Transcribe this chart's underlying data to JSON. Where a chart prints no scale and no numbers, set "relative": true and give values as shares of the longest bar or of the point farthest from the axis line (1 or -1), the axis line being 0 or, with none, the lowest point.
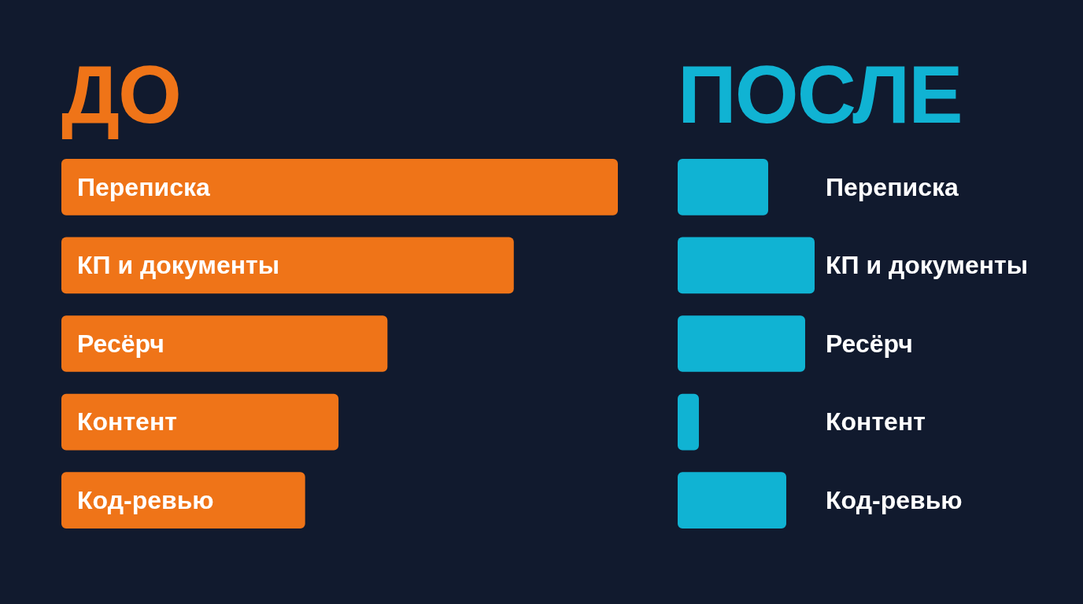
{
  "chart_data": [
    {
      "type": "bar",
      "orientation": "horizontal",
      "relative": true,
      "title": "ДО",
      "categories": [
        "Переписка",
        "КП и документы",
        "Ресёрч",
        "Контент",
        "Код-ревью"
      ],
      "color": "#ef7418",
      "values": [
        1,
        0.813,
        0.586,
        0.498,
        0.438
      ]
    },
    {
      "type": "bar",
      "orientation": "horizontal",
      "relative": true,
      "title": "ПОСЛЕ",
      "categories": [
        "Переписка",
        "КП и документы",
        "Ресёрч",
        "Контент",
        "Код-ревью"
      ],
      "color": "#10b3d3",
      "values": [
        0.661,
        1,
        0.931,
        0.155,
        0.793
      ]
    }
  ]
}
